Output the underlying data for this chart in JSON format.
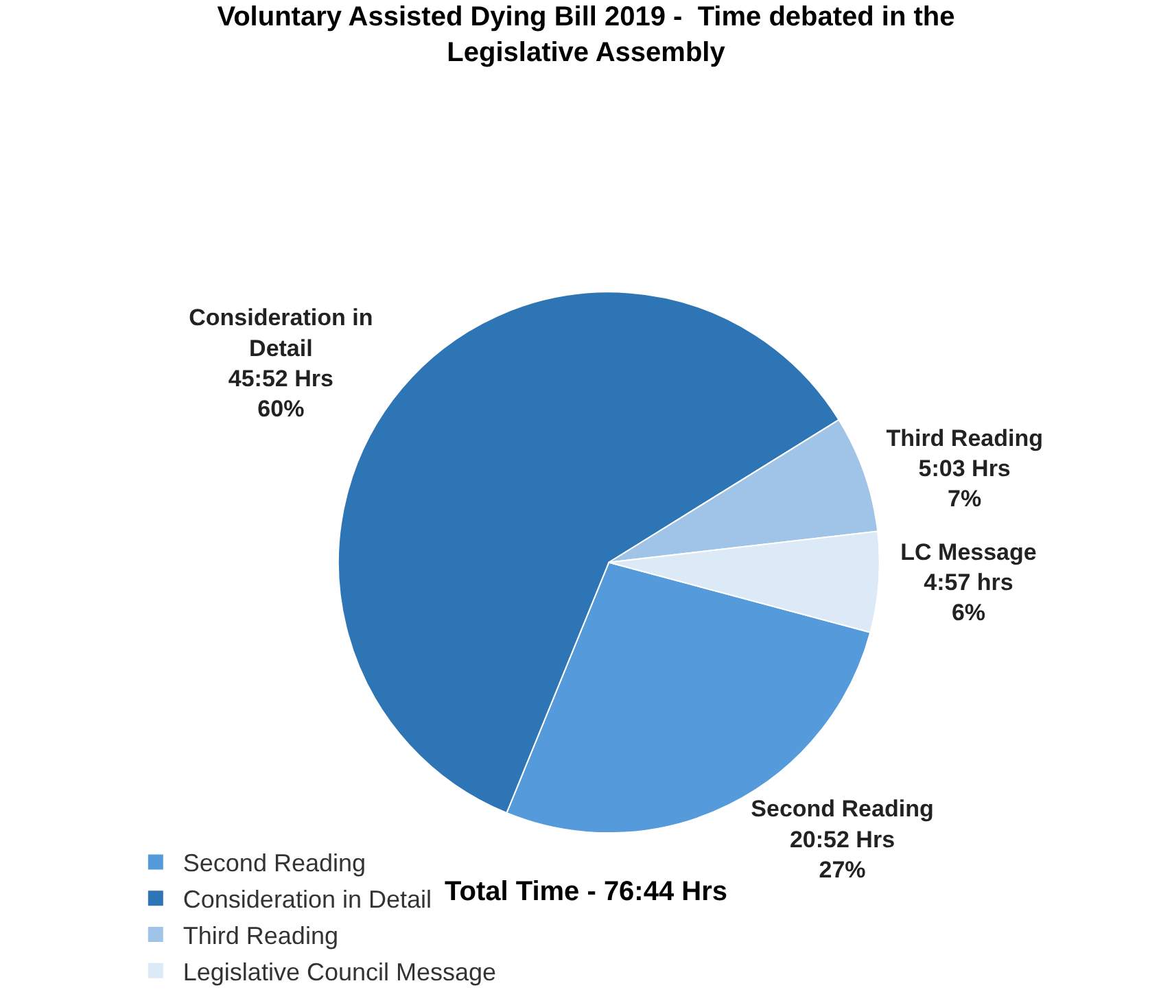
{
  "chart_data": {
    "type": "pie",
    "title": "Voluntary Assisted Dying Bill 2019 -  Time debated in the Legislative Assembly",
    "categories": [
      "Second Reading",
      "Consideration in Detail",
      "Third Reading",
      "Legislative Council Message"
    ],
    "values": [
      27,
      60,
      7,
      6
    ],
    "colors": [
      "#559bdb",
      "#2e75b6",
      "#9fc4e7",
      "#dce9f6"
    ],
    "value_labels": [
      "Second Reading\n20:52 Hrs\n27%",
      "Consideration in\nDetail\n45:52 Hrs\n60%",
      "Third Reading\n5:03 Hrs\n7%",
      "LC Message\n4:57 hrs\n6%"
    ],
    "annotations": [
      "Total Time - 76:44 Hrs"
    ],
    "legend": "bottom"
  }
}
